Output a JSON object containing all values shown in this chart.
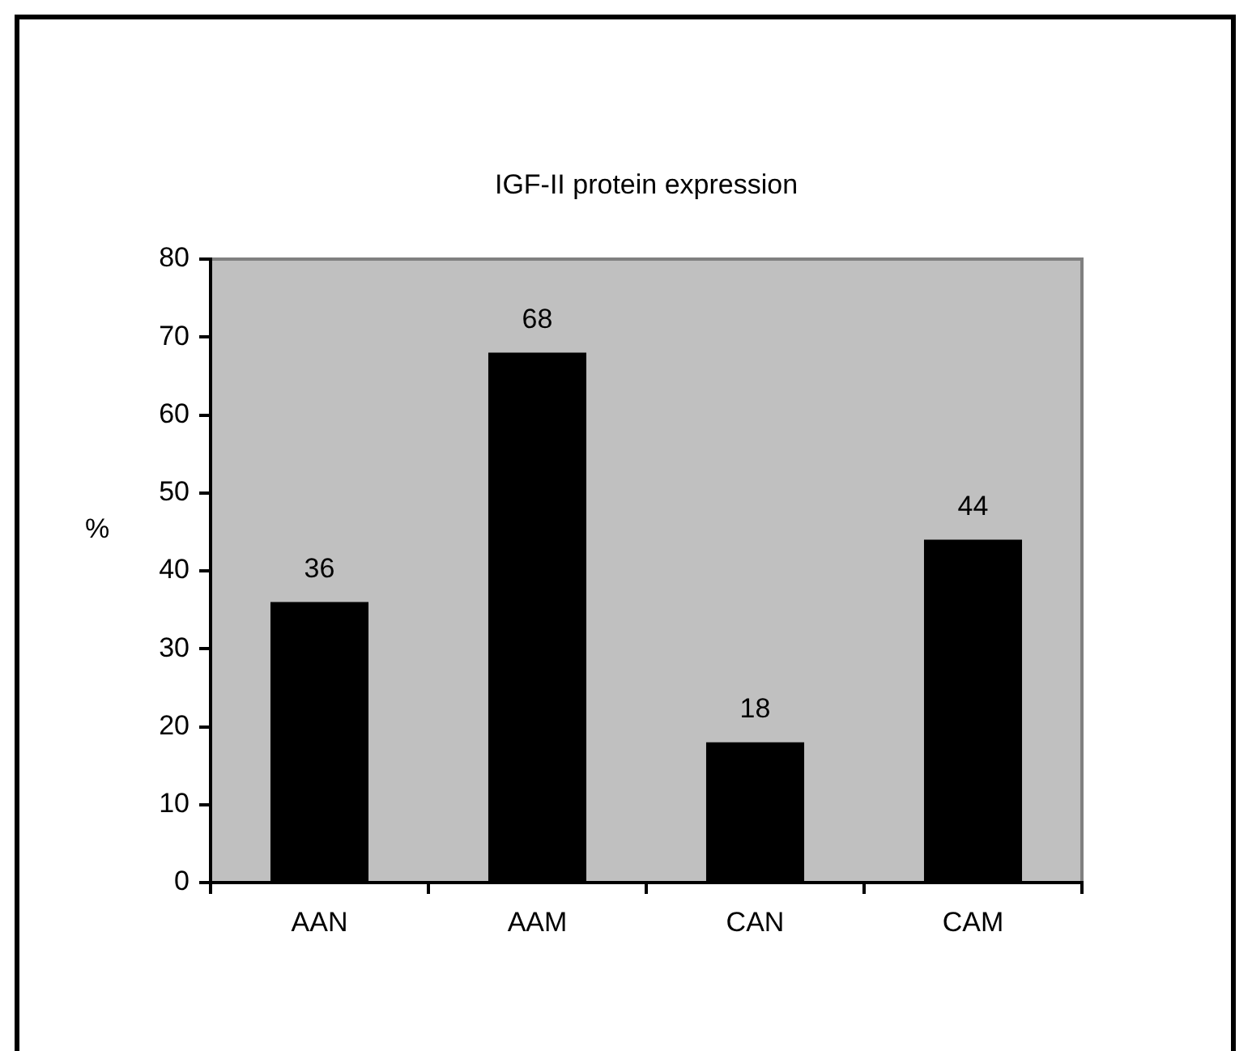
{
  "chart_data": {
    "type": "bar",
    "title": "IGF-II protein expression",
    "ylabel": "%",
    "categories": [
      "AAN",
      "AAM",
      "CAN",
      "CAM"
    ],
    "values": [
      36,
      68,
      18,
      44
    ],
    "color": "#000000",
    "ylim": [
      0,
      80
    ],
    "yticks": [
      0,
      10,
      20,
      30,
      40,
      50,
      60,
      70,
      80
    ],
    "grid": false,
    "legend": false,
    "data_labels": true
  }
}
